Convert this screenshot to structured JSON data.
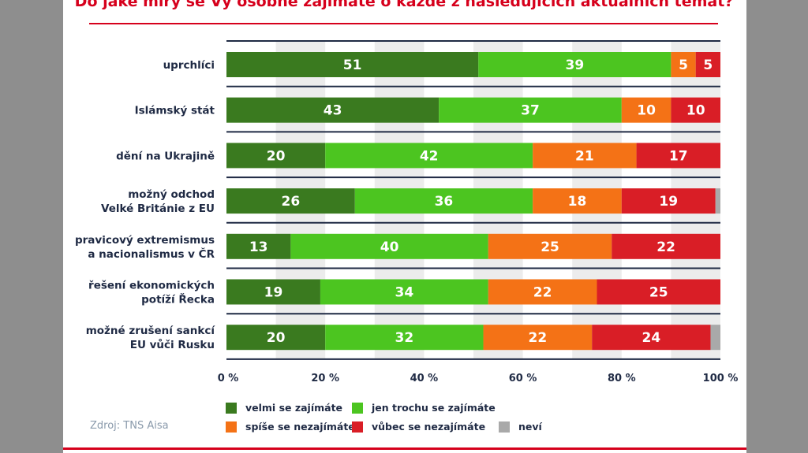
{
  "title": "Do jaké míry se Vy osobně zajímáte o každé z následujících aktuálních témat?",
  "source": "Zdroj: TNS Aisa",
  "chart_data": {
    "type": "bar",
    "orientation": "horizontal",
    "stacked": true,
    "categories": [
      [
        "uprchlíci"
      ],
      [
        "Islámský stát"
      ],
      [
        "dění na Ukrajině"
      ],
      [
        "možný odchod",
        "Velké Británie z EU"
      ],
      [
        "pravicový extremismus",
        "a nacionalismus v ČR"
      ],
      [
        "řešení ekonomických",
        "potíží Řecka"
      ],
      [
        "možné zrušení sankcí",
        "EU vůči Rusku"
      ]
    ],
    "series": [
      {
        "name": "velmi se zajímáte",
        "color": "#3a7a1f",
        "values": [
          51,
          43,
          20,
          26,
          13,
          19,
          20
        ]
      },
      {
        "name": "jen trochu se zajímáte",
        "color": "#4cc520",
        "values": [
          39,
          37,
          42,
          36,
          40,
          34,
          32
        ]
      },
      {
        "name": "spíše se nezajímáte",
        "color": "#f47216",
        "values": [
          5,
          10,
          21,
          18,
          25,
          22,
          22
        ]
      },
      {
        "name": "vůbec se nezajímáte",
        "color": "#d91e26",
        "values": [
          5,
          10,
          17,
          19,
          22,
          25,
          24
        ]
      },
      {
        "name": "neví",
        "color": "#a9a9a9",
        "values": [
          0,
          0,
          0,
          1,
          0,
          0,
          2
        ]
      }
    ],
    "xlim": [
      0,
      100
    ],
    "xticks": [
      "0 %",
      "20 %",
      "40 %",
      "60 %",
      "80 %",
      "100 %"
    ],
    "grid": true,
    "legend_position": "bottom"
  }
}
